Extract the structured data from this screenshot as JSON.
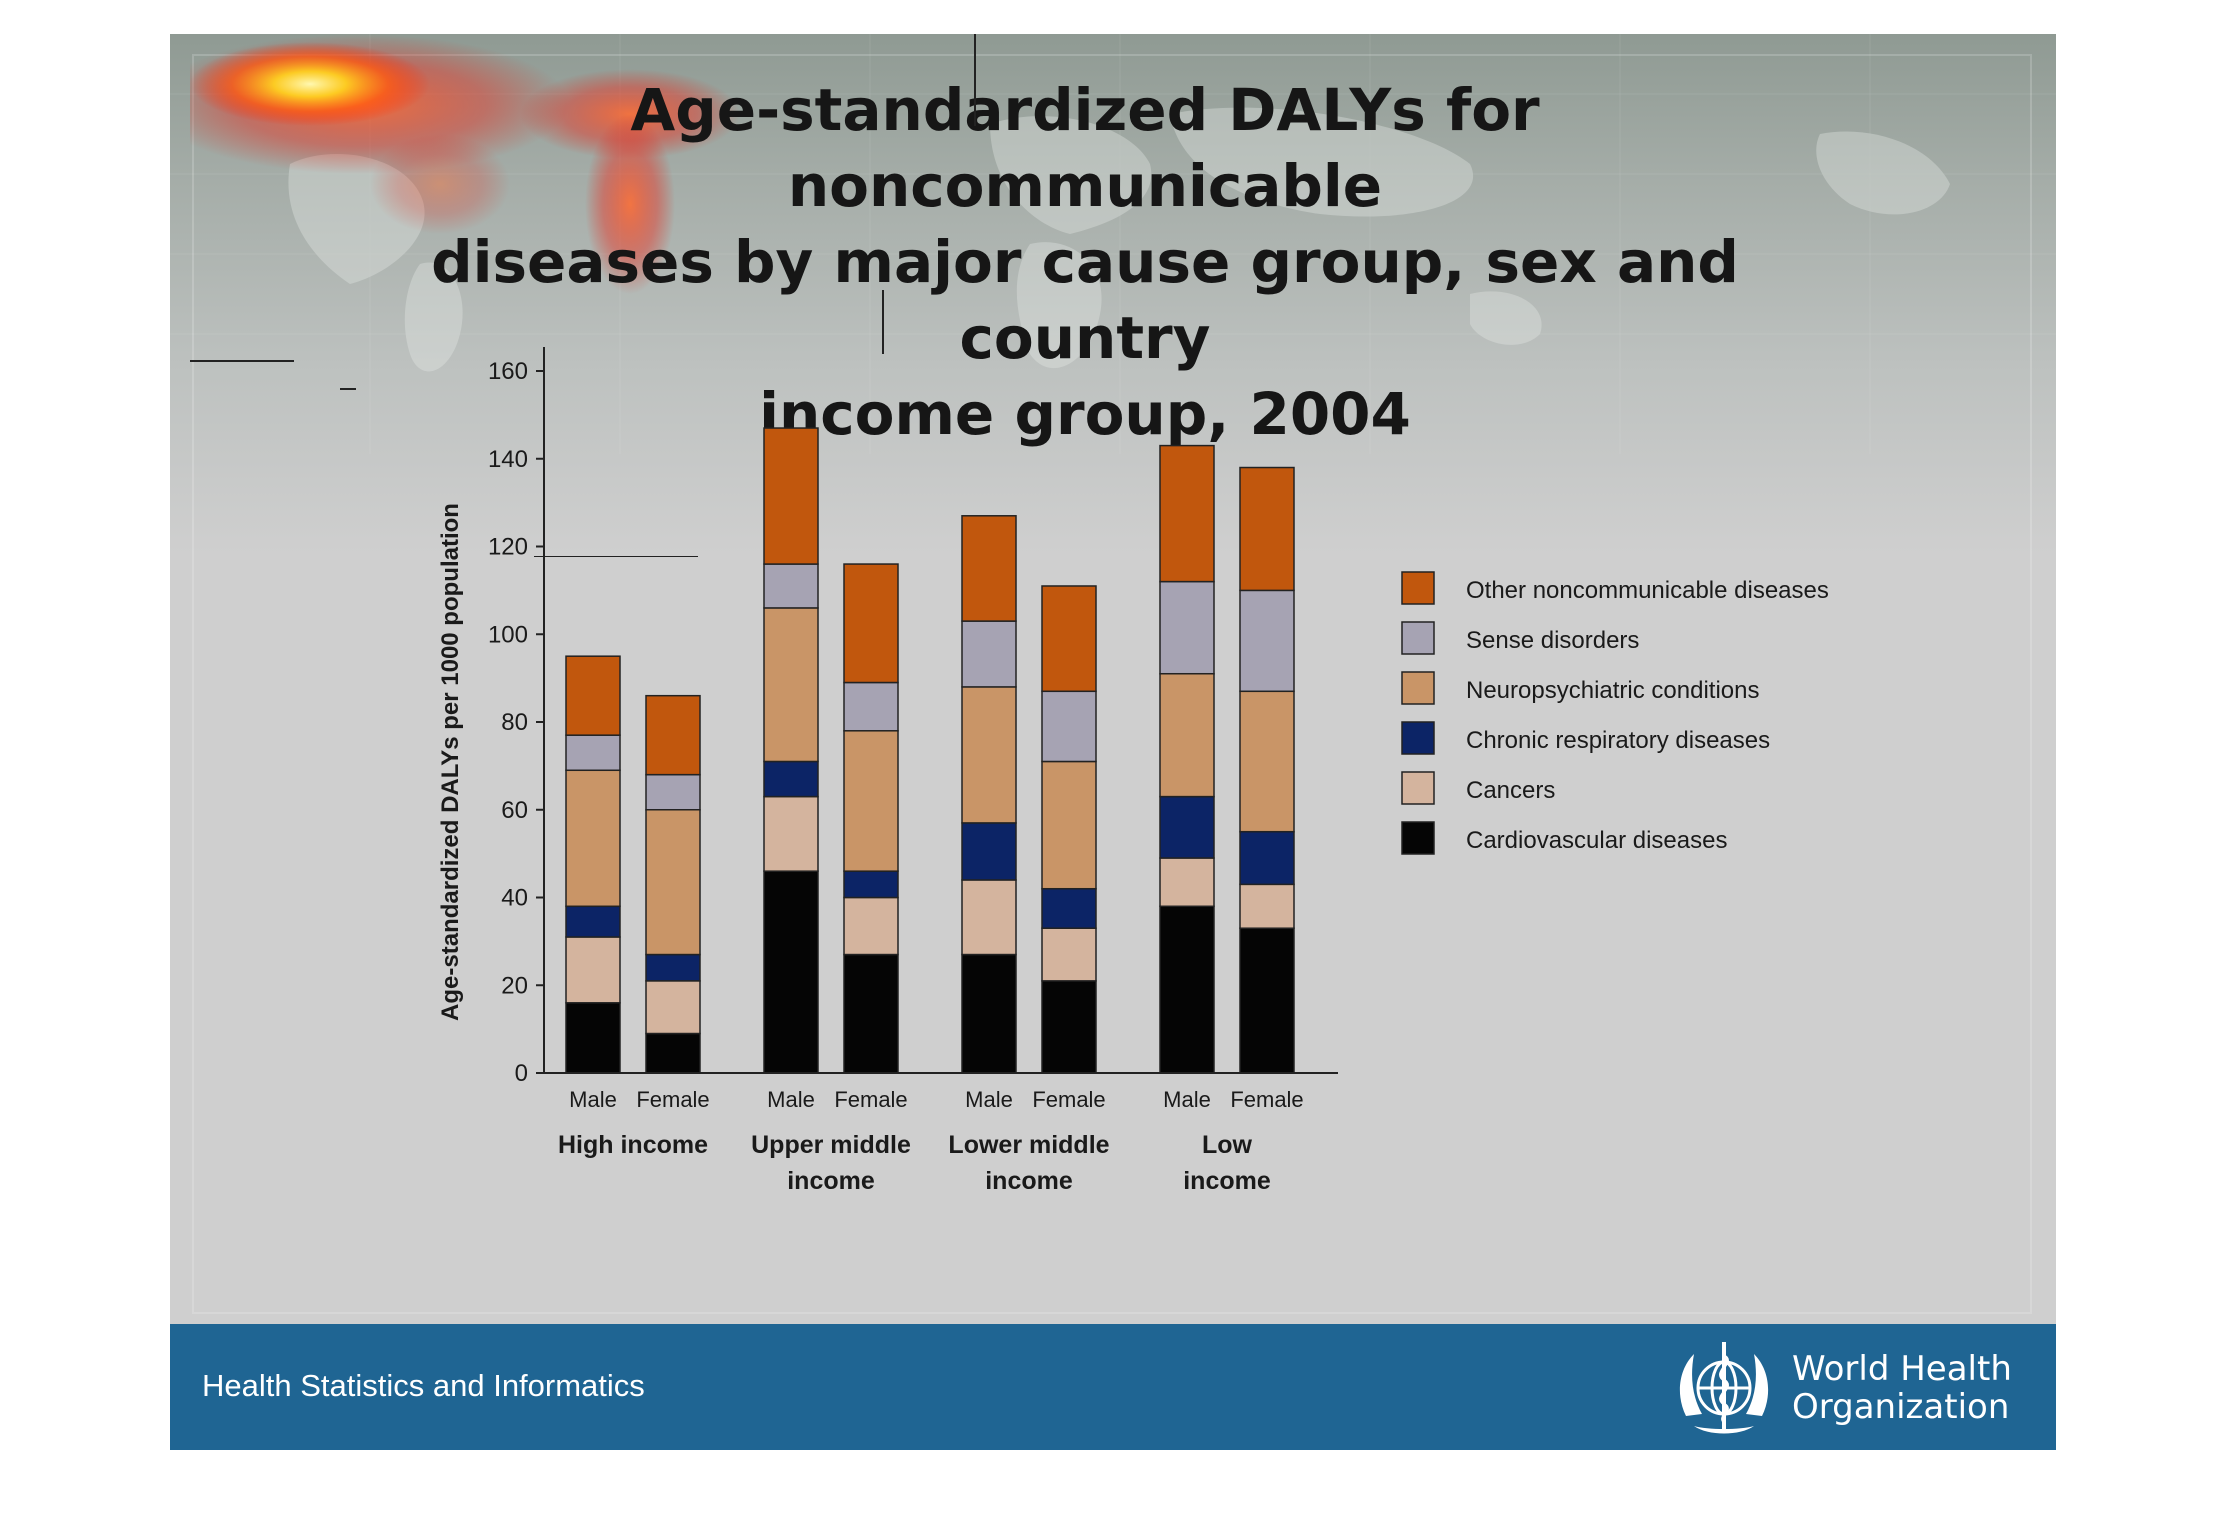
{
  "slide": {
    "title_lines": [
      "Age-standardized DALYs for noncommunicable",
      "diseases by major cause group,  sex and country",
      "income group, 2004"
    ],
    "footer_text": "Health Statistics and Informatics",
    "org_name_lines": [
      "World Health",
      "Organization"
    ]
  },
  "colors": {
    "Cardiovascular diseases": "#050505",
    "Cancers": "#d4b49e",
    "Chronic respiratory diseases": "#0c2466",
    "Neuropsychiatric conditions": "#c99567",
    "Sense disorders": "#a6a3b3",
    "Other noncommunicable diseases": "#c1570d",
    "footer": "#1f6593"
  },
  "chart_data": {
    "type": "bar",
    "stacked": true,
    "title": "",
    "xlabel": "",
    "ylabel": "Age-standardized DALYs per 1000 population",
    "ylim": [
      0,
      160
    ],
    "yticks": [
      0,
      20,
      40,
      60,
      80,
      100,
      120,
      140,
      160
    ],
    "groups": [
      {
        "label": "High income",
        "categories": [
          "Male",
          "Female"
        ]
      },
      {
        "label": "Upper middle\nincome",
        "categories": [
          "Male",
          "Female"
        ]
      },
      {
        "label": "Lower middle\nincome",
        "categories": [
          "Male",
          "Female"
        ]
      },
      {
        "label": "Low\nincome",
        "categories": [
          "Male",
          "Female"
        ]
      }
    ],
    "legend_position": "right",
    "legend_order": [
      "Other noncommunicable diseases",
      "Sense disorders",
      "Neuropsychiatric conditions",
      "Chronic respiratory diseases",
      "Cancers",
      "Cardiovascular diseases"
    ],
    "series": [
      {
        "name": "Cardiovascular diseases",
        "values": [
          16,
          9,
          46,
          27,
          27,
          21,
          38,
          33
        ]
      },
      {
        "name": "Cancers",
        "values": [
          15,
          12,
          17,
          13,
          17,
          12,
          11,
          10
        ]
      },
      {
        "name": "Chronic respiratory diseases",
        "values": [
          7,
          6,
          8,
          6,
          13,
          9,
          14,
          12
        ]
      },
      {
        "name": "Neuropsychiatric conditions",
        "values": [
          31,
          33,
          35,
          32,
          31,
          29,
          28,
          32
        ]
      },
      {
        "name": "Sense disorders",
        "values": [
          8,
          8,
          10,
          11,
          15,
          16,
          21,
          23
        ]
      },
      {
        "name": "Other noncommunicable diseases",
        "values": [
          18,
          18,
          31,
          27,
          24,
          24,
          31,
          28
        ]
      }
    ]
  }
}
